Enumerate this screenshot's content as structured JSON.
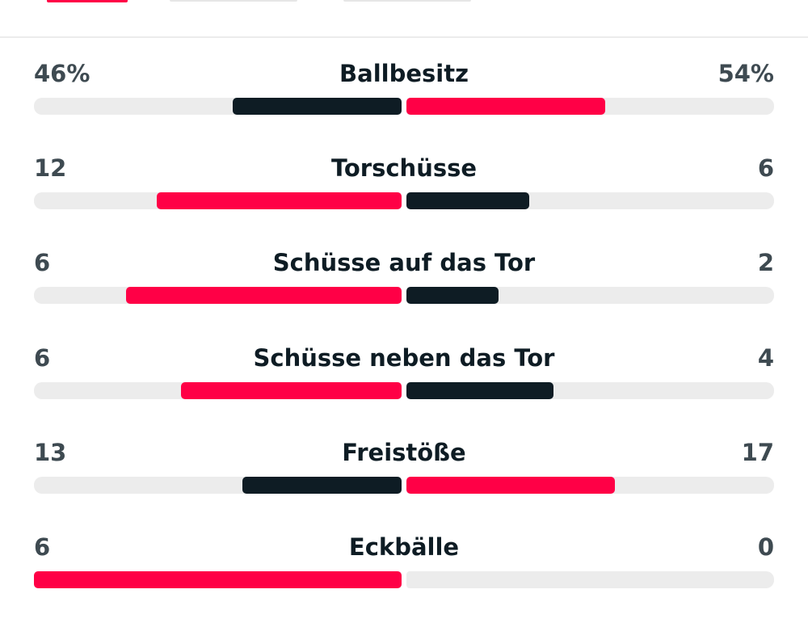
{
  "colors": {
    "accent": "#ff0046",
    "dark": "#0e1c24",
    "track": "#ececec",
    "value_text": "#3e4a51"
  },
  "stats": [
    {
      "label": "Ballbesitz",
      "home_display": "46%",
      "away_display": "54%",
      "home": 46,
      "away": 54
    },
    {
      "label": "Torschüsse",
      "home_display": "12",
      "away_display": "6",
      "home": 12,
      "away": 6
    },
    {
      "label": "Schüsse auf das Tor",
      "home_display": "6",
      "away_display": "2",
      "home": 6,
      "away": 2
    },
    {
      "label": "Schüsse neben das Tor",
      "home_display": "6",
      "away_display": "4",
      "home": 6,
      "away": 4
    },
    {
      "label": "Freistöße",
      "home_display": "13",
      "away_display": "17",
      "home": 13,
      "away": 17
    },
    {
      "label": "Eckbälle",
      "home_display": "6",
      "away_display": "0",
      "home": 6,
      "away": 0
    }
  ]
}
